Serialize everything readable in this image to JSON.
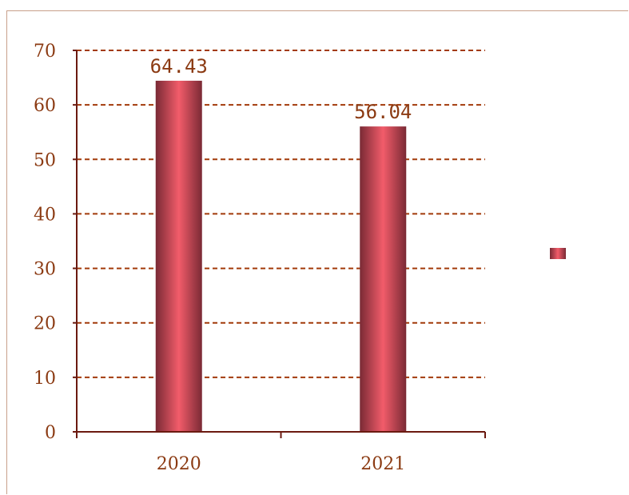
{
  "chart_data": {
    "type": "bar",
    "categories": [
      "2020",
      "2021"
    ],
    "values": [
      64.43,
      56.04
    ],
    "data_labels": [
      "64.43",
      "56.04"
    ],
    "title": "",
    "xlabel": "",
    "ylabel": "",
    "ylim": [
      0,
      70
    ],
    "yticks": [
      "0",
      "10",
      "20",
      "30",
      "40",
      "50",
      "60",
      "70"
    ],
    "grid": true,
    "legend": "right",
    "colors": {
      "bar_dark": "#7a2a35",
      "bar_light": "#f05a68",
      "axis": "#6b1a10",
      "grid": "#a23a0a",
      "text": "#8b3a12"
    }
  }
}
